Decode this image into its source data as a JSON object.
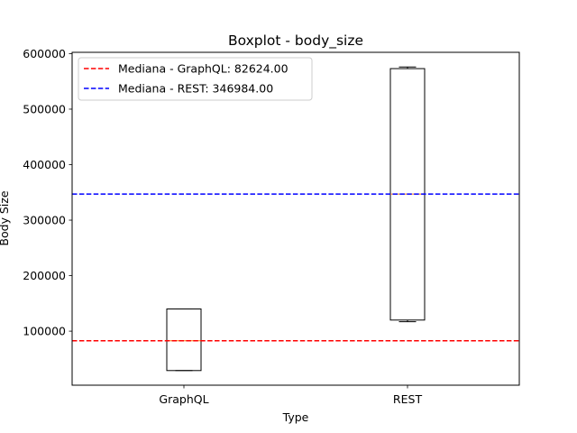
{
  "chart_data": {
    "type": "boxplot",
    "title": "Boxplot - body_size",
    "xlabel": "Type",
    "ylabel": "Body Size",
    "categories": [
      "GraphQL",
      "REST"
    ],
    "boxes": [
      {
        "category": "GraphQL",
        "whisker_low": 29000,
        "q1": 29000,
        "median": 82624,
        "q3": 140000,
        "whisker_high": 140000
      },
      {
        "category": "REST",
        "whisker_low": 117000,
        "q1": 120000,
        "median": 346984,
        "q3": 573000,
        "whisker_high": 576000
      }
    ],
    "reference_lines": [
      {
        "label": "Mediana - GraphQL: 82624.00",
        "value": 82624,
        "color": "#ff0000",
        "style": "dashed"
      },
      {
        "label": "Mediana - REST: 346984.00",
        "value": 346984,
        "color": "#0000ff",
        "style": "dashed"
      }
    ],
    "y_ticks": [
      100000,
      200000,
      300000,
      400000,
      500000,
      600000
    ],
    "y_tick_labels": [
      "100000",
      "200000",
      "300000",
      "400000",
      "500000",
      "600000"
    ],
    "ylim": [
      2650,
      602350
    ],
    "legend_position": "top-left",
    "grid": false,
    "colors": {
      "box": "#000000",
      "median": "#ff7f0e"
    }
  }
}
